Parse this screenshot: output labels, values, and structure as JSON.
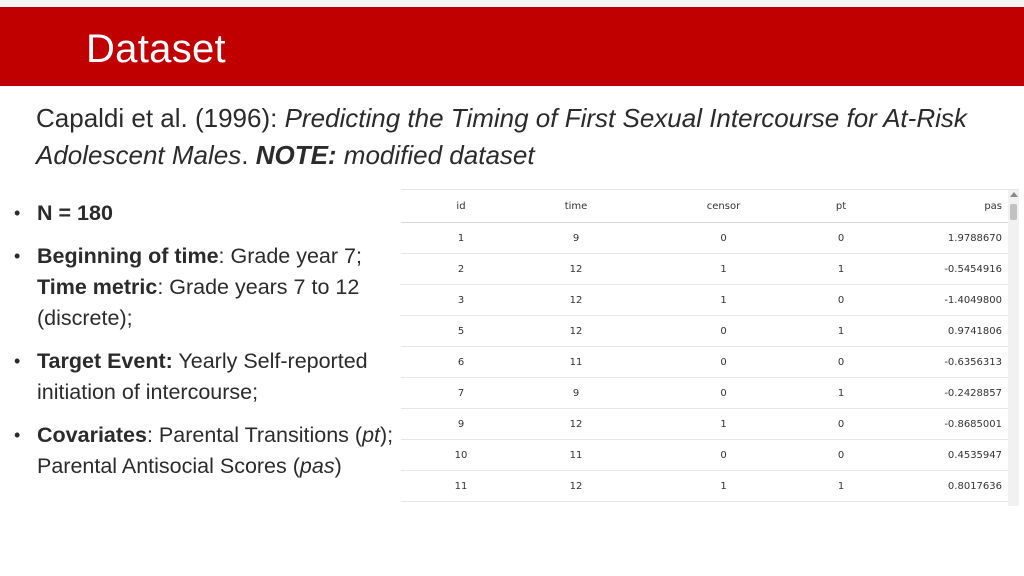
{
  "header": {
    "title": "Dataset"
  },
  "citation": {
    "authors": "Capaldi et al. (1996): ",
    "title": "Predicting the Timing of First Sexual Intercourse for At-Risk Adolescent Males",
    "sep": ". ",
    "note_label": "NOTE:",
    "note_text": " modified dataset"
  },
  "bullets": {
    "n": "N = 180",
    "b2_label": "Beginning of time",
    "b2_text": ": Grade year 7;",
    "b2_label2": "Time metric",
    "b2_text2": ": Grade years 7 to 12 (discrete);",
    "b3_label": "Target Event:",
    "b3_text": " Yearly Self-reported initiation of intercourse;",
    "b4_label": "Covariates",
    "b4_text1": ": Parental Transitions (",
    "b4_pt": "pt",
    "b4_text2": "); Parental Antisocial Scores (",
    "b4_pas": "pas",
    "b4_text3": ")"
  },
  "table": {
    "headers": [
      "id",
      "time",
      "censor",
      "pt",
      "pas"
    ],
    "rows": [
      [
        "1",
        "9",
        "0",
        "0",
        "1.9788670"
      ],
      [
        "2",
        "12",
        "1",
        "1",
        "-0.5454916"
      ],
      [
        "3",
        "12",
        "1",
        "0",
        "-1.4049800"
      ],
      [
        "5",
        "12",
        "0",
        "1",
        "0.9741806"
      ],
      [
        "6",
        "11",
        "0",
        "0",
        "-0.6356313"
      ],
      [
        "7",
        "9",
        "0",
        "1",
        "-0.2428857"
      ],
      [
        "9",
        "12",
        "1",
        "0",
        "-0.8685001"
      ],
      [
        "10",
        "11",
        "0",
        "0",
        "0.4535947"
      ],
      [
        "11",
        "12",
        "1",
        "1",
        "0.8017636"
      ]
    ]
  },
  "colors": {
    "banner": "#c00000",
    "text": "#2b2b2b"
  }
}
